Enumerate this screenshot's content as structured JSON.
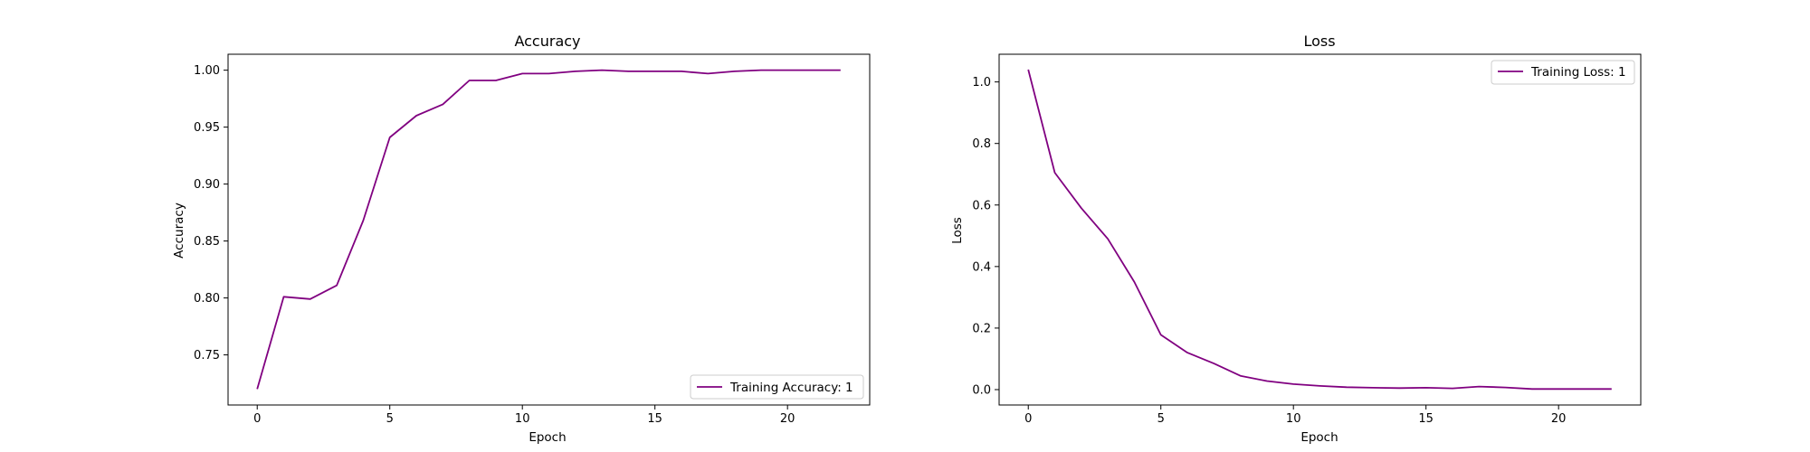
{
  "colors": {
    "line": "#800080",
    "axes": "#000000",
    "background": "#ffffff",
    "legend_border": "#cccccc"
  },
  "chart_data": [
    {
      "type": "line",
      "title": "Accuracy",
      "xlabel": "Epoch",
      "ylabel": "Accuracy",
      "xlim": [
        -1.1,
        23.1
      ],
      "ylim": [
        0.706,
        1.014
      ],
      "xticks": [
        0,
        5,
        10,
        15,
        20
      ],
      "yticks": [
        0.75,
        0.8,
        0.85,
        0.9,
        0.95,
        1.0
      ],
      "xtick_labels": [
        "0",
        "5",
        "10",
        "15",
        "20"
      ],
      "ytick_labels": [
        "0.75",
        "0.80",
        "0.85",
        "0.90",
        "0.95",
        "1.00"
      ],
      "legend_position": "lower-right",
      "grid": false,
      "series": [
        {
          "name": "Training Accuracy: 1",
          "x": [
            0,
            1,
            2,
            3,
            4,
            5,
            6,
            7,
            8,
            9,
            10,
            11,
            12,
            13,
            14,
            15,
            16,
            17,
            18,
            19,
            20,
            21,
            22
          ],
          "y": [
            0.72,
            0.801,
            0.799,
            0.811,
            0.868,
            0.941,
            0.96,
            0.97,
            0.991,
            0.991,
            0.997,
            0.997,
            0.999,
            1.0,
            0.999,
            0.999,
            0.999,
            0.997,
            0.999,
            1.0,
            1.0,
            1.0,
            1.0
          ]
        }
      ]
    },
    {
      "type": "line",
      "title": "Loss",
      "xlabel": "Epoch",
      "ylabel": "Loss",
      "xlim": [
        -1.1,
        23.1
      ],
      "ylim": [
        -0.05,
        1.09
      ],
      "xticks": [
        0,
        5,
        10,
        15,
        20
      ],
      "yticks": [
        0.0,
        0.2,
        0.4,
        0.6,
        0.8,
        1.0
      ],
      "xtick_labels": [
        "0",
        "5",
        "10",
        "15",
        "20"
      ],
      "ytick_labels": [
        "0.0",
        "0.2",
        "0.4",
        "0.6",
        "0.8",
        "1.0"
      ],
      "legend_position": "upper-right",
      "grid": false,
      "series": [
        {
          "name": "Training Loss: 1",
          "x": [
            0,
            1,
            2,
            3,
            4,
            5,
            6,
            7,
            8,
            9,
            10,
            11,
            12,
            13,
            14,
            15,
            16,
            17,
            18,
            19,
            20,
            21,
            22
          ],
          "y": [
            1.04,
            0.705,
            0.59,
            0.49,
            0.35,
            0.178,
            0.12,
            0.085,
            0.045,
            0.028,
            0.018,
            0.012,
            0.008,
            0.006,
            0.005,
            0.006,
            0.004,
            0.01,
            0.007,
            0.002,
            0.002,
            0.002,
            0.002
          ]
        }
      ]
    }
  ]
}
